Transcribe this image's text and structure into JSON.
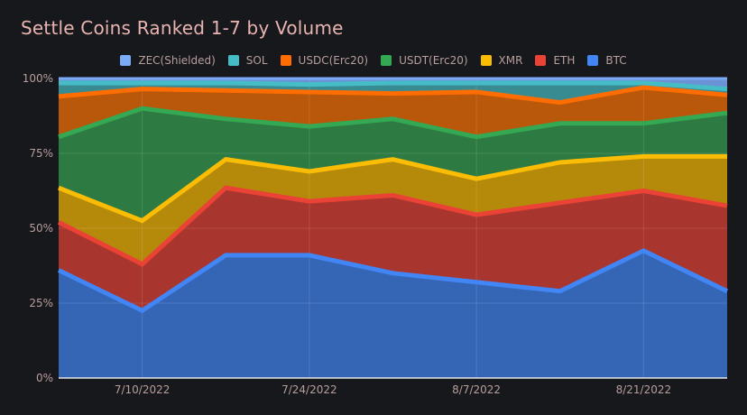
{
  "chart_data": {
    "type": "area",
    "stacked": true,
    "title": "Settle Coins Ranked 1-7 by Volume",
    "xlabel": "",
    "ylabel": "",
    "ylim": [
      0,
      100
    ],
    "y_ticks": [
      "0%",
      "25%",
      "50%",
      "75%",
      "100%"
    ],
    "x_tick_labels": [
      "7/10/2022",
      "7/24/2022",
      "8/7/2022",
      "8/21/2022"
    ],
    "x": [
      "7/3/2022",
      "7/10/2022",
      "7/17/2022",
      "7/24/2022",
      "7/31/2022",
      "8/7/2022",
      "8/14/2022",
      "8/21/2022",
      "8/28/2022"
    ],
    "legend_position": "top",
    "grid": true,
    "series": [
      {
        "name": "BTC",
        "line_color": "#4285f4",
        "fill_color": "#3566b5",
        "values": [
          36,
          22.5,
          41,
          41,
          35,
          32,
          29,
          42.5,
          29
        ]
      },
      {
        "name": "ETH",
        "line_color": "#ea4335",
        "fill_color": "#a8352e",
        "values": [
          16,
          15.5,
          22.5,
          18,
          26,
          22.5,
          29.5,
          20,
          28.5
        ]
      },
      {
        "name": "XMR",
        "line_color": "#fbbc04",
        "fill_color": "#b5890a",
        "values": [
          11.5,
          14.5,
          9.5,
          10,
          12,
          12,
          13.5,
          11.5,
          16.5
        ]
      },
      {
        "name": "USDT(Erc20)",
        "line_color": "#34a853",
        "fill_color": "#2d7a43",
        "values": [
          17,
          37.5,
          13.5,
          15,
          13.5,
          14,
          13,
          11,
          14.5
        ]
      },
      {
        "name": "USDC(Erc20)",
        "line_color": "#ff6d01",
        "fill_color": "#b9570a",
        "values": [
          13.5,
          6.5,
          9.5,
          11.5,
          8.5,
          15,
          7,
          12,
          6
        ]
      },
      {
        "name": "SOL",
        "line_color": "#46bdc6",
        "fill_color": "#398b92",
        "values": [
          4.5,
          2,
          2.5,
          2.5,
          3.5,
          3,
          6.5,
          1.5,
          2
        ]
      },
      {
        "name": "ZEC(Shielded)",
        "line_color": "#7baaf7",
        "fill_color": "#6a92d4",
        "values": [
          1.5,
          1.5,
          1.5,
          2,
          1.5,
          1.5,
          1.5,
          1.5,
          3.5
        ]
      }
    ]
  },
  "legend_order": [
    "ZEC(Shielded)",
    "SOL",
    "USDC(Erc20)",
    "USDT(Erc20)",
    "XMR",
    "ETH",
    "BTC"
  ]
}
